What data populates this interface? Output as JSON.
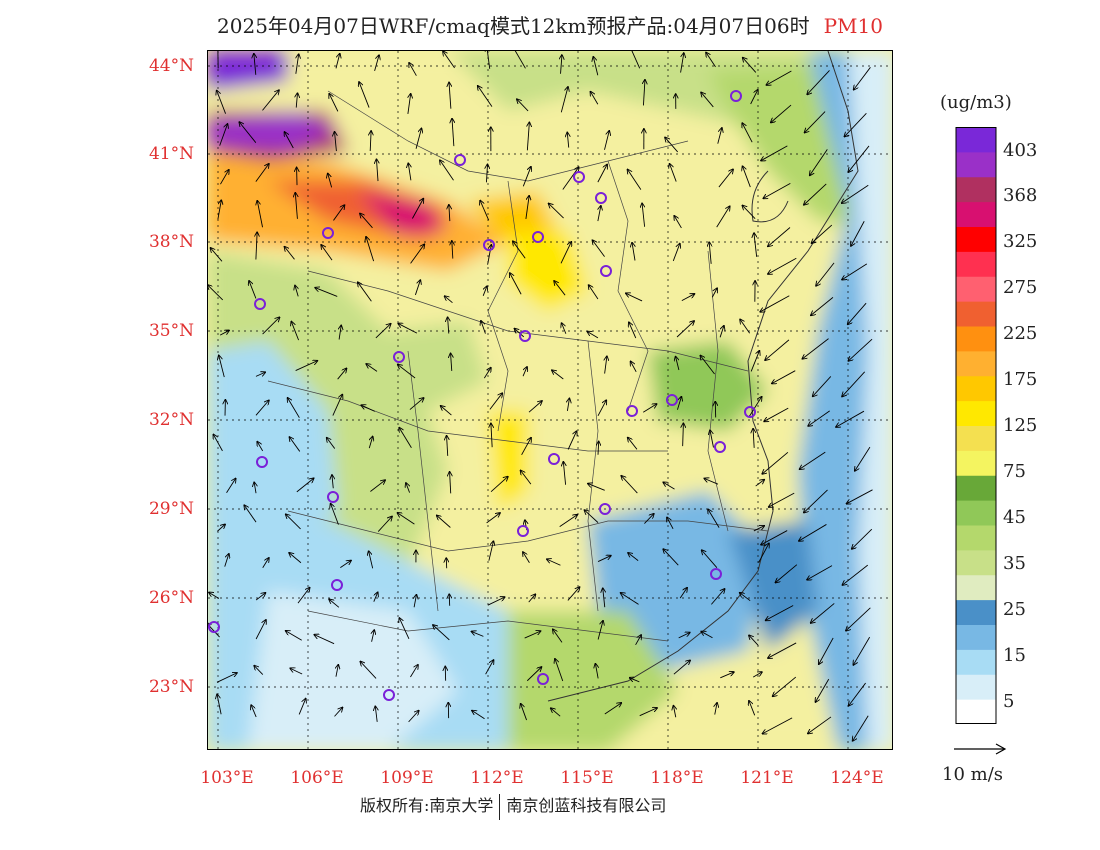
{
  "title": {
    "text": "2025年04月07日WRF/cmaq模式12km预报产品:04月07日06时",
    "pollutant": "PM10"
  },
  "map": {
    "lat_labels": [
      "44°N",
      "41°N",
      "38°N",
      "35°N",
      "32°N",
      "29°N",
      "26°N",
      "23°N"
    ],
    "lon_labels": [
      "103°E",
      "106°E",
      "109°E",
      "112°E",
      "115°E",
      "118°E",
      "121°E",
      "124°E"
    ]
  },
  "colorbar": {
    "unit": "(ug/m3)",
    "colors": [
      "#ffffff",
      "#d8eef8",
      "#a8dcf4",
      "#78b8e4",
      "#4a90c8",
      "#e0ecc0",
      "#c8e088",
      "#b4d86c",
      "#90c858",
      "#68a838",
      "#f4f460",
      "#f4e050",
      "#ffe800",
      "#ffc800",
      "#ffb030",
      "#ff9010",
      "#f06030",
      "#ff6070",
      "#ff3050",
      "#ff0000",
      "#d81070",
      "#b03060",
      "#9a30c8",
      "#7a28d8"
    ],
    "labels": [
      "5",
      "15",
      "25",
      "35",
      "45",
      "75",
      "125",
      "175",
      "225",
      "275",
      "325",
      "368",
      "403"
    ]
  },
  "wind_scale": {
    "label": "10 m/s"
  },
  "footer": {
    "copyright": "版权所有:南京大学",
    "company": "南京创蓝科技有限公司"
  }
}
